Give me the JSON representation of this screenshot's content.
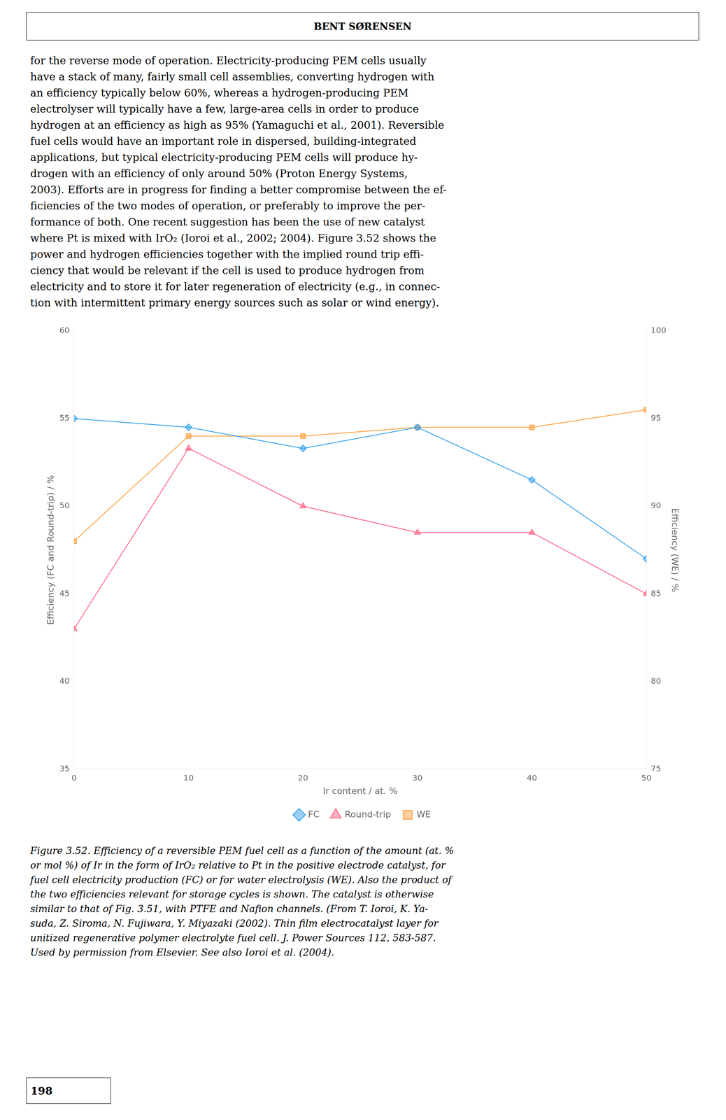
{
  "header_text": "BENT SØRENSEN",
  "body_text_lines": [
    "for the reverse mode of operation. Electricity-producing PEM cells usually",
    "have a stack of many, fairly small cell assemblies, converting hydrogen with",
    "an efficiency typically below 60%, whereas a hydrogen-producing PEM",
    "electrolyser will typically have a few, large-area cells in order to produce",
    "hydrogen at an efficiency as high as 95% (Yamaguchi et al., 2001). Reversible",
    "fuel cells would have an important role in dispersed, building-integrated",
    "applications, but typical electricity-producing PEM cells will produce hy-",
    "drogen with an efficiency of only around 50% (Proton Energy Systems,",
    "2003). Efforts are in progress for finding a better compromise between the ef-",
    "ficiencies of the two modes of operation, or preferably to improve the per-",
    "formance of both. One recent suggestion has been the use of new catalyst",
    "where Pt is mixed with IrO₂ (Ioroi et al., 2002; 2004). Figure 3.52 shows the",
    "power and hydrogen efficiencies together with the implied round trip effi-",
    "ciency that would be relevant if the cell is used to produce hydrogen from",
    "electricity and to store it for later regeneration of electricity (e.g., in connec-",
    "tion with intermittent primary energy sources such as solar or wind energy)."
  ],
  "chart_data": {
    "type": "line",
    "xlabel": "Ir content / at. %",
    "ylabel": "Efficiency (FC and Round-trip) / %",
    "y2label": "Efficiency (WE) / %",
    "x": [
      0,
      10,
      20,
      30,
      40,
      50
    ],
    "xlim": [
      0,
      50
    ],
    "xticks": [
      0,
      10,
      20,
      30,
      40,
      50
    ],
    "ylim": [
      35,
      60
    ],
    "yticks": [
      35,
      40,
      45,
      50,
      55,
      60
    ],
    "y2lim": [
      75,
      100
    ],
    "y2ticks": [
      75,
      80,
      85,
      90,
      95,
      100
    ],
    "grid": false,
    "legend": "bottom",
    "series": [
      {
        "name": "FC",
        "marker": "diamond",
        "line_style": "solid",
        "values": [
          55.0,
          54.5,
          53.3,
          54.5,
          51.5,
          47.0
        ]
      },
      {
        "name": "Round-trip",
        "marker": "triangle",
        "line_style": "solid",
        "values": [
          43.0,
          53.3,
          50.0,
          48.5,
          48.5,
          45.0
        ]
      },
      {
        "name": "WE",
        "marker": "square",
        "line_style": "solid",
        "axis": "y2",
        "values": [
          88.0,
          94.0,
          94.0,
          94.5,
          94.5,
          95.5
        ]
      }
    ]
  },
  "caption_lines": [
    "Figure 3.52. Efficiency of a reversible PEM fuel cell as a function of the amount (at. %",
    "or mol %) of Ir in the form of IrO₂ relative to Pt in the positive electrode catalyst, for",
    "fuel cell electricity production (FC) or for water electrolysis (WE). Also the product of",
    "the two efficiencies relevant for storage cycles is shown. The catalyst is otherwise",
    "similar to that of Fig. 3.51, with PTFE and Nafion channels. (From T. Ioroi, K. Ya-",
    "suda, Z. Siroma, N. Fujiwara, Y. Miyazaki (2002). Thin film electrocatalyst layer for",
    "unitized regenerative polymer electrolyte fuel cell. J. Power Sources 112, 583-587.",
    "Used by permission from Elsevier. See also Ioroi et al. (2004)."
  ],
  "page_number": "198"
}
